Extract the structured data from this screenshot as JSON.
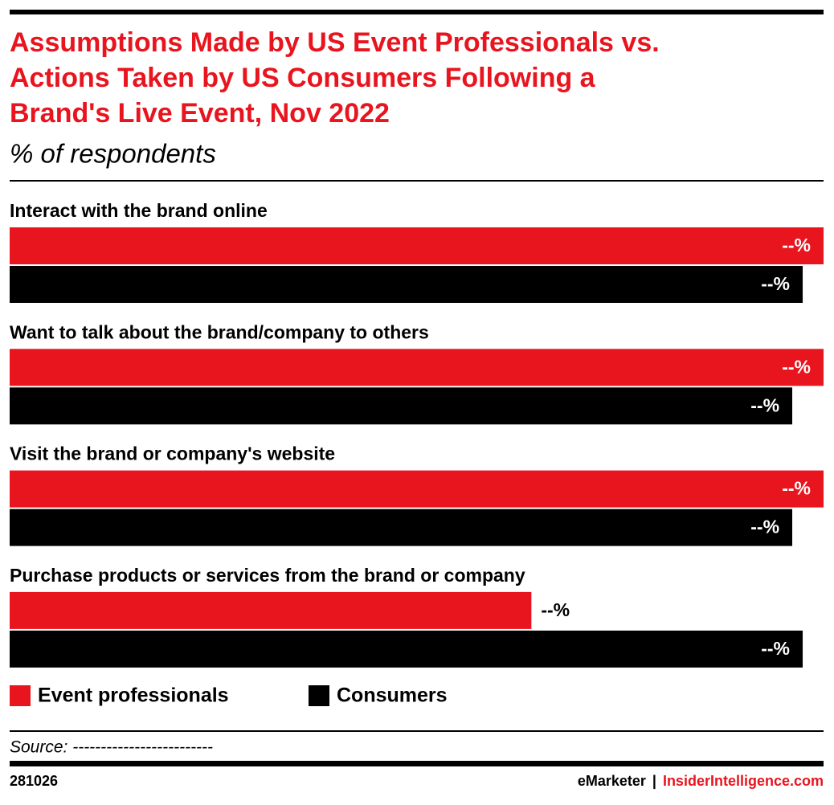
{
  "chart_data": {
    "type": "hbar",
    "title": "Assumptions Made by US Event Professionals vs. Actions Taken by US Consumers Following a Brand's Live Event, Nov 2022",
    "title_lines": [
      "Assumptions Made by US Event Professionals vs.",
      "Actions Taken by US Consumers Following a",
      "Brand's Live Event, Nov 2022"
    ],
    "subtitle": "% of respondents",
    "categories": [
      "Interact with the brand online",
      "Want to talk about the brand/company to others",
      "Visit the brand or company's website",
      "Purchase products or services from the brand or company"
    ],
    "series": [
      {
        "name": "Event professionals",
        "color": "#e8141e",
        "values": [
          78,
          78,
          78,
          50
        ],
        "value_labels": [
          "--%",
          "--%",
          "--%",
          "--%"
        ]
      },
      {
        "name": "Consumers",
        "color": "#000000",
        "values": [
          76,
          75,
          75,
          76
        ],
        "value_labels": [
          "--%",
          "--%",
          "--%",
          "--%"
        ]
      }
    ],
    "legend": "bottom-left",
    "source": "Source: -------------------------"
  },
  "footer": {
    "id": "281026",
    "brand": "eMarketer",
    "separator": "|",
    "site": "InsiderIntelligence.com"
  }
}
